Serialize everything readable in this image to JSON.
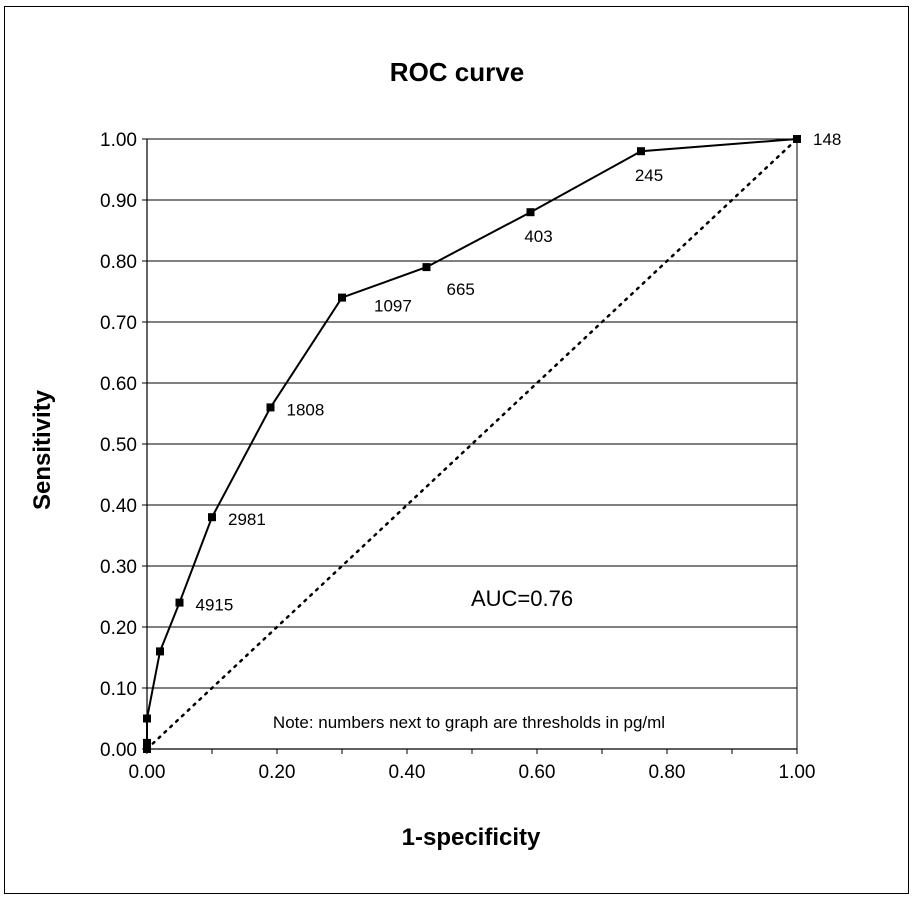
{
  "chart_data": {
    "type": "line",
    "title": "ROC curve",
    "xlabel": "1-specificity",
    "ylabel": "Sensitivity",
    "xlim": [
      0,
      1
    ],
    "ylim": [
      0,
      1
    ],
    "x_ticks": [
      "0.00",
      "0.20",
      "0.40",
      "0.60",
      "0.80",
      "1.00"
    ],
    "y_ticks": [
      "0.00",
      "0.10",
      "0.20",
      "0.30",
      "0.40",
      "0.50",
      "0.60",
      "0.70",
      "0.80",
      "0.90",
      "1.00"
    ],
    "grid": "horizontal",
    "series": [
      {
        "style": "solid line with square markers",
        "points": [
          {
            "x": 0.0,
            "y": 0.0,
            "label": ""
          },
          {
            "x": 0.0,
            "y": 0.01,
            "label": ""
          },
          {
            "x": 0.0,
            "y": 0.05,
            "label": ""
          },
          {
            "x": 0.02,
            "y": 0.16,
            "label": ""
          },
          {
            "x": 0.05,
            "y": 0.24,
            "label": "4915"
          },
          {
            "x": 0.1,
            "y": 0.38,
            "label": "2981"
          },
          {
            "x": 0.19,
            "y": 0.56,
            "label": "1808"
          },
          {
            "x": 0.3,
            "y": 0.74,
            "label": "1097"
          },
          {
            "x": 0.43,
            "y": 0.79,
            "label": "665"
          },
          {
            "x": 0.59,
            "y": 0.88,
            "label": "403"
          },
          {
            "x": 0.76,
            "y": 0.98,
            "label": "245"
          },
          {
            "x": 1.0,
            "y": 1.0,
            "label": "148"
          }
        ]
      }
    ],
    "reference_line": {
      "style": "dotted diagonal",
      "from": [
        0,
        0
      ],
      "to": [
        1,
        1
      ]
    },
    "annotations": {
      "auc": "AUC=0.76",
      "note": "Note: numbers next to graph are thresholds in pg/ml"
    },
    "colors": {
      "line": "#000000",
      "grid": "#000000",
      "background": "#ffffff"
    }
  }
}
